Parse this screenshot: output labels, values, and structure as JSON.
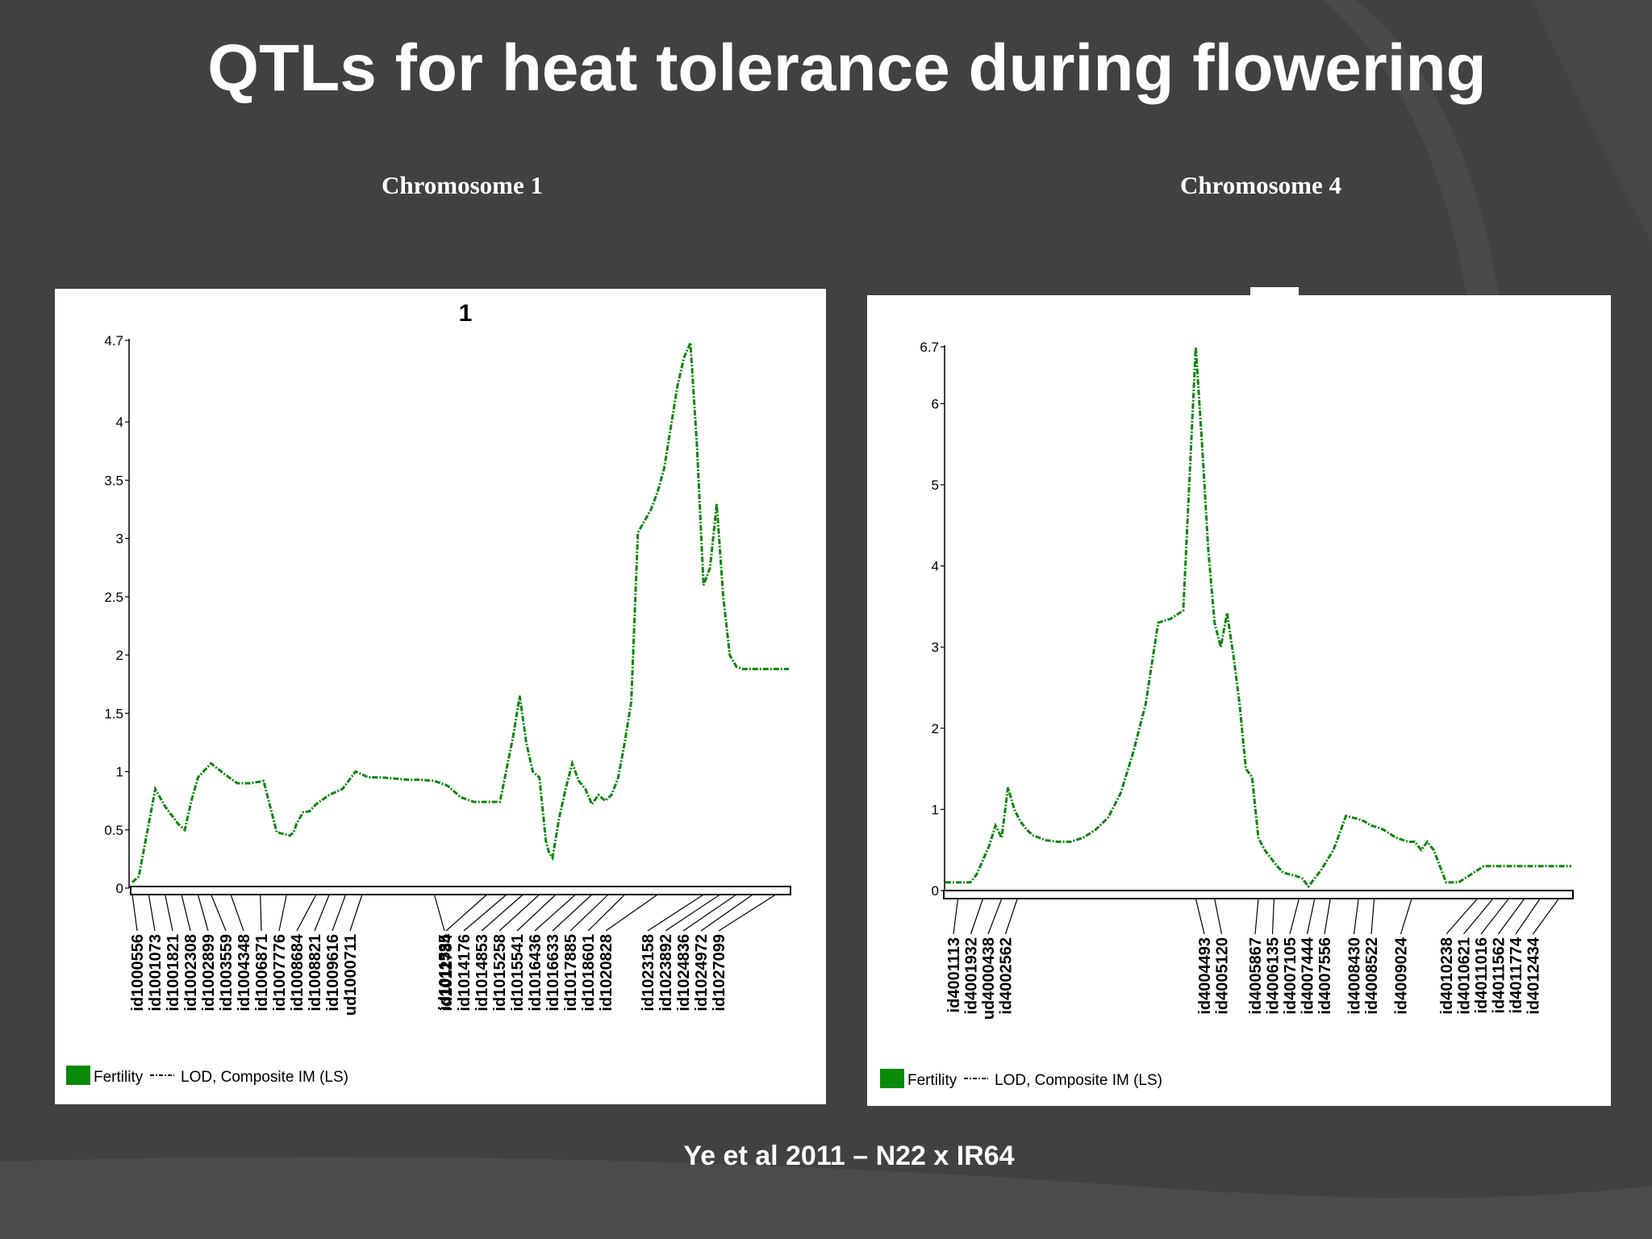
{
  "slide": {
    "title": "QTLs for heat tolerance during flowering",
    "chromosome_labels": [
      "Chromosome 1",
      "Chromosome 4"
    ],
    "caption": "Ye et al 2011 – N22 x IR64"
  },
  "colors": {
    "background": "#414141",
    "line": "#0f870f",
    "legend_fill": "#0a8a0a"
  },
  "chart_data": [
    {
      "type": "line",
      "title": "1",
      "ylim": [
        0,
        4.7
      ],
      "yticks": [
        0,
        0.5,
        1,
        1.5,
        2,
        2.5,
        3,
        3.5,
        4,
        4.7
      ],
      "xlim": [
        0,
        100
      ],
      "legend": [
        "Fertility",
        "LOD, Composite IM (LS)"
      ],
      "legend_position": "bottom-left",
      "series": [
        {
          "name": "Fertility",
          "x": [
            0,
            1,
            3.5,
            5,
            7,
            8,
            9,
            10,
            12,
            14,
            16,
            18,
            20,
            22,
            24,
            24.6,
            25,
            26,
            27,
            28,
            30,
            32,
            34,
            36,
            38,
            40,
            42,
            44,
            46,
            48,
            50,
            52,
            54,
            56,
            58,
            59,
            60,
            61,
            62,
            63,
            63.5,
            64,
            65,
            66,
            67,
            68,
            69,
            70,
            71,
            72,
            73,
            74,
            75,
            76,
            77,
            78,
            79,
            80,
            81,
            82,
            83,
            84,
            85,
            86,
            87,
            88,
            89,
            90,
            91,
            92,
            93,
            94,
            95,
            96,
            97,
            98,
            99,
            100
          ],
          "y": [
            0.05,
            0.1,
            0.85,
            0.7,
            0.55,
            0.5,
            0.75,
            0.95,
            1.07,
            0.98,
            0.9,
            0.9,
            0.92,
            0.48,
            0.45,
            0.48,
            0.55,
            0.65,
            0.66,
            0.72,
            0.8,
            0.85,
            1.0,
            0.95,
            0.95,
            0.94,
            0.93,
            0.93,
            0.92,
            0.88,
            0.78,
            0.74,
            0.74,
            0.74,
            1.3,
            1.65,
            1.25,
            1.0,
            0.95,
            0.4,
            0.3,
            0.26,
            0.6,
            0.85,
            1.07,
            0.92,
            0.85,
            0.72,
            0.8,
            0.75,
            0.8,
            0.95,
            1.25,
            1.6,
            3.05,
            3.15,
            3.25,
            3.4,
            3.6,
            3.95,
            4.3,
            4.55,
            4.68,
            3.8,
            2.6,
            2.75,
            3.3,
            2.5,
            2.0,
            1.9,
            1.88,
            1.88,
            1.88,
            1.88,
            1.88,
            1.88,
            1.88,
            1.88
          ]
        }
      ],
      "markers": [
        {
          "label": "id1000556",
          "x": 0
        },
        {
          "label": "id1001073",
          "x": 2.5
        },
        {
          "label": "id1001821",
          "x": 5
        },
        {
          "label": "id1002308",
          "x": 7.5
        },
        {
          "label": "id1002899",
          "x": 10
        },
        {
          "label": "id1003559",
          "x": 12
        },
        {
          "label": "id1004348",
          "x": 15
        },
        {
          "label": "id1006871",
          "x": 19.5
        },
        {
          "label": "id1007776",
          "x": 23.5
        },
        {
          "label": "id1008684",
          "x": 28
        },
        {
          "label": "id1008821",
          "x": 30
        },
        {
          "label": "id1009616",
          "x": 32.5
        },
        {
          "label": "ud1000711",
          "x": 35
        },
        {
          "label": "id1011535",
          "x": 46
        },
        {
          "label": "id1012784",
          "x": 54
        },
        {
          "label": "id1014176",
          "x": 57
        },
        {
          "label": "id1014853",
          "x": 59.5
        },
        {
          "label": "id1015258",
          "x": 62
        },
        {
          "label": "id1015541",
          "x": 64.5
        },
        {
          "label": "id1016436",
          "x": 67.5
        },
        {
          "label": "id1016633",
          "x": 70
        },
        {
          "label": "id1017885",
          "x": 72.5
        },
        {
          "label": "id1018601",
          "x": 75
        },
        {
          "label": "id1020828",
          "x": 80
        },
        {
          "label": "id1023158",
          "x": 87
        },
        {
          "label": "id1023892",
          "x": 89.5
        },
        {
          "label": "id1024836",
          "x": 92
        },
        {
          "label": "id1024972",
          "x": 94.5
        },
        {
          "label": "id1027099",
          "x": 98
        }
      ]
    },
    {
      "type": "line",
      "title": "",
      "ylim": [
        0,
        6.7
      ],
      "yticks": [
        0,
        1,
        2,
        3,
        4,
        5,
        6,
        6.7
      ],
      "xlim": [
        0,
        100
      ],
      "legend": [
        "Fertility",
        "LOD, Composite IM (LS)"
      ],
      "legend_position": "bottom-left",
      "series": [
        {
          "name": "Fertility",
          "x": [
            0,
            4,
            5,
            7,
            8,
            9,
            10,
            11,
            12,
            13,
            14,
            16,
            18,
            20,
            22,
            24,
            26,
            28,
            30,
            32,
            34,
            36,
            38,
            40,
            41,
            42,
            43,
            44,
            45,
            46,
            47,
            48,
            49,
            50,
            51,
            52,
            53,
            54,
            55,
            56,
            57,
            58,
            59,
            60,
            62,
            64,
            66,
            67,
            68,
            69,
            70,
            72,
            74,
            75,
            76,
            77,
            78,
            79,
            80,
            82,
            84,
            86,
            88,
            90,
            92,
            94,
            95,
            96,
            97,
            98,
            99,
            100
          ],
          "y": [
            0.1,
            0.1,
            0.2,
            0.55,
            0.8,
            0.65,
            1.27,
            1.0,
            0.85,
            0.75,
            0.68,
            0.62,
            0.6,
            0.6,
            0.65,
            0.75,
            0.9,
            1.2,
            1.7,
            2.3,
            3.3,
            3.35,
            3.45,
            6.7,
            5.5,
            4.2,
            3.3,
            3.0,
            3.42,
            2.9,
            2.3,
            1.5,
            1.4,
            0.65,
            0.5,
            0.4,
            0.3,
            0.22,
            0.2,
            0.18,
            0.15,
            0.05,
            0.15,
            0.25,
            0.5,
            0.92,
            0.88,
            0.85,
            0.8,
            0.78,
            0.75,
            0.65,
            0.6,
            0.6,
            0.5,
            0.6,
            0.5,
            0.3,
            0.1,
            0.1,
            0.2,
            0.3,
            0.3,
            0.3,
            0.3,
            0.3,
            0.3,
            0.3,
            0.3,
            0.3,
            0.3,
            0.3
          ]
        }
      ],
      "markers": [
        {
          "label": "id4001113",
          "x": 2
        },
        {
          "label": "id4001932",
          "x": 6
        },
        {
          "label": "ud4000438",
          "x": 9
        },
        {
          "label": "id4002562",
          "x": 11.5
        },
        {
          "label": "id4004493",
          "x": 40
        },
        {
          "label": "id4005120",
          "x": 43
        },
        {
          "label": "id4005867",
          "x": 50
        },
        {
          "label": "id4006135",
          "x": 52.5
        },
        {
          "label": "id4007105",
          "x": 56.5
        },
        {
          "label": "id4007444",
          "x": 59
        },
        {
          "label": "id4007556",
          "x": 61.5
        },
        {
          "label": "id4008430",
          "x": 66
        },
        {
          "label": "id4008522",
          "x": 68.5
        },
        {
          "label": "id4009024",
          "x": 74.5
        },
        {
          "label": "id4010238",
          "x": 85
        },
        {
          "label": "id4010621",
          "x": 87.5
        },
        {
          "label": "id4011016",
          "x": 90
        },
        {
          "label": "id4011562",
          "x": 92.5
        },
        {
          "label": "id4011774",
          "x": 95
        },
        {
          "label": "id4012434",
          "x": 98
        }
      ]
    }
  ]
}
